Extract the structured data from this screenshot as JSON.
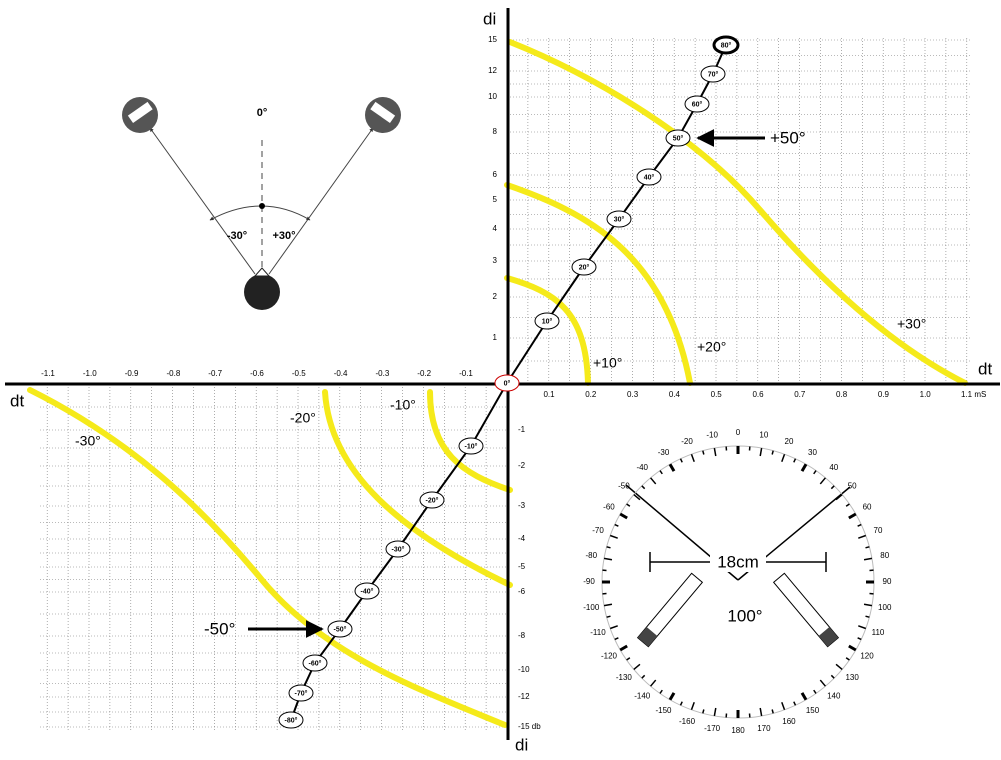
{
  "axes": {
    "x_left": "dt",
    "x_right": "dt",
    "y_top": "di",
    "y_bottom": "di"
  },
  "x_ticks_negative": [
    "-1.1",
    "-1.0",
    "-0.9",
    "-0.8",
    "-0.7",
    "-0.6",
    "-0.5",
    "-0.4",
    "-0.3",
    "-0.2",
    "-0.1"
  ],
  "x_ticks_positive": [
    "0.1",
    "0.2",
    "0.3",
    "0.4",
    "0.5",
    "0.6",
    "0.7",
    "0.8",
    "0.9",
    "1.0",
    "1.1 mS"
  ],
  "y_ticks_positive": [
    "15",
    "12",
    "10",
    "8",
    "6",
    "5",
    "4",
    "3",
    "2",
    "1"
  ],
  "y_ticks_negative": [
    "-1",
    "-2",
    "-3",
    "-4",
    "-5",
    "-6",
    "-8",
    "-10",
    "-12",
    "-15 db"
  ],
  "angle_markers": [
    "80°",
    "70°",
    "60°",
    "50°",
    "40°",
    "30°",
    "20°",
    "10°",
    "0°",
    "-10°",
    "-20°",
    "-30°",
    "-40°",
    "-50°",
    "-60°",
    "-70°",
    "-80°"
  ],
  "curve_labels": [
    "+10°",
    "+20°",
    "+30°",
    "-10°",
    "-20°",
    "-30°"
  ],
  "callouts": [
    "+50°",
    "-50°"
  ],
  "stereo": {
    "center": "0°",
    "left": "-30°",
    "right": "+30°"
  },
  "dial": {
    "labels": [
      "-170",
      "-160",
      "-150",
      "-140",
      "-130",
      "-120",
      "-110",
      "-100",
      "-90",
      "-80",
      "-70",
      "-60",
      "-50",
      "-40",
      "-30",
      "-20",
      "-10",
      "0",
      "10",
      "20",
      "30",
      "40",
      "50",
      "60",
      "70",
      "80",
      "90",
      "100",
      "110",
      "120",
      "130",
      "140",
      "150",
      "160",
      "170",
      "180"
    ],
    "spacing": "18cm",
    "angle": "100°"
  }
}
